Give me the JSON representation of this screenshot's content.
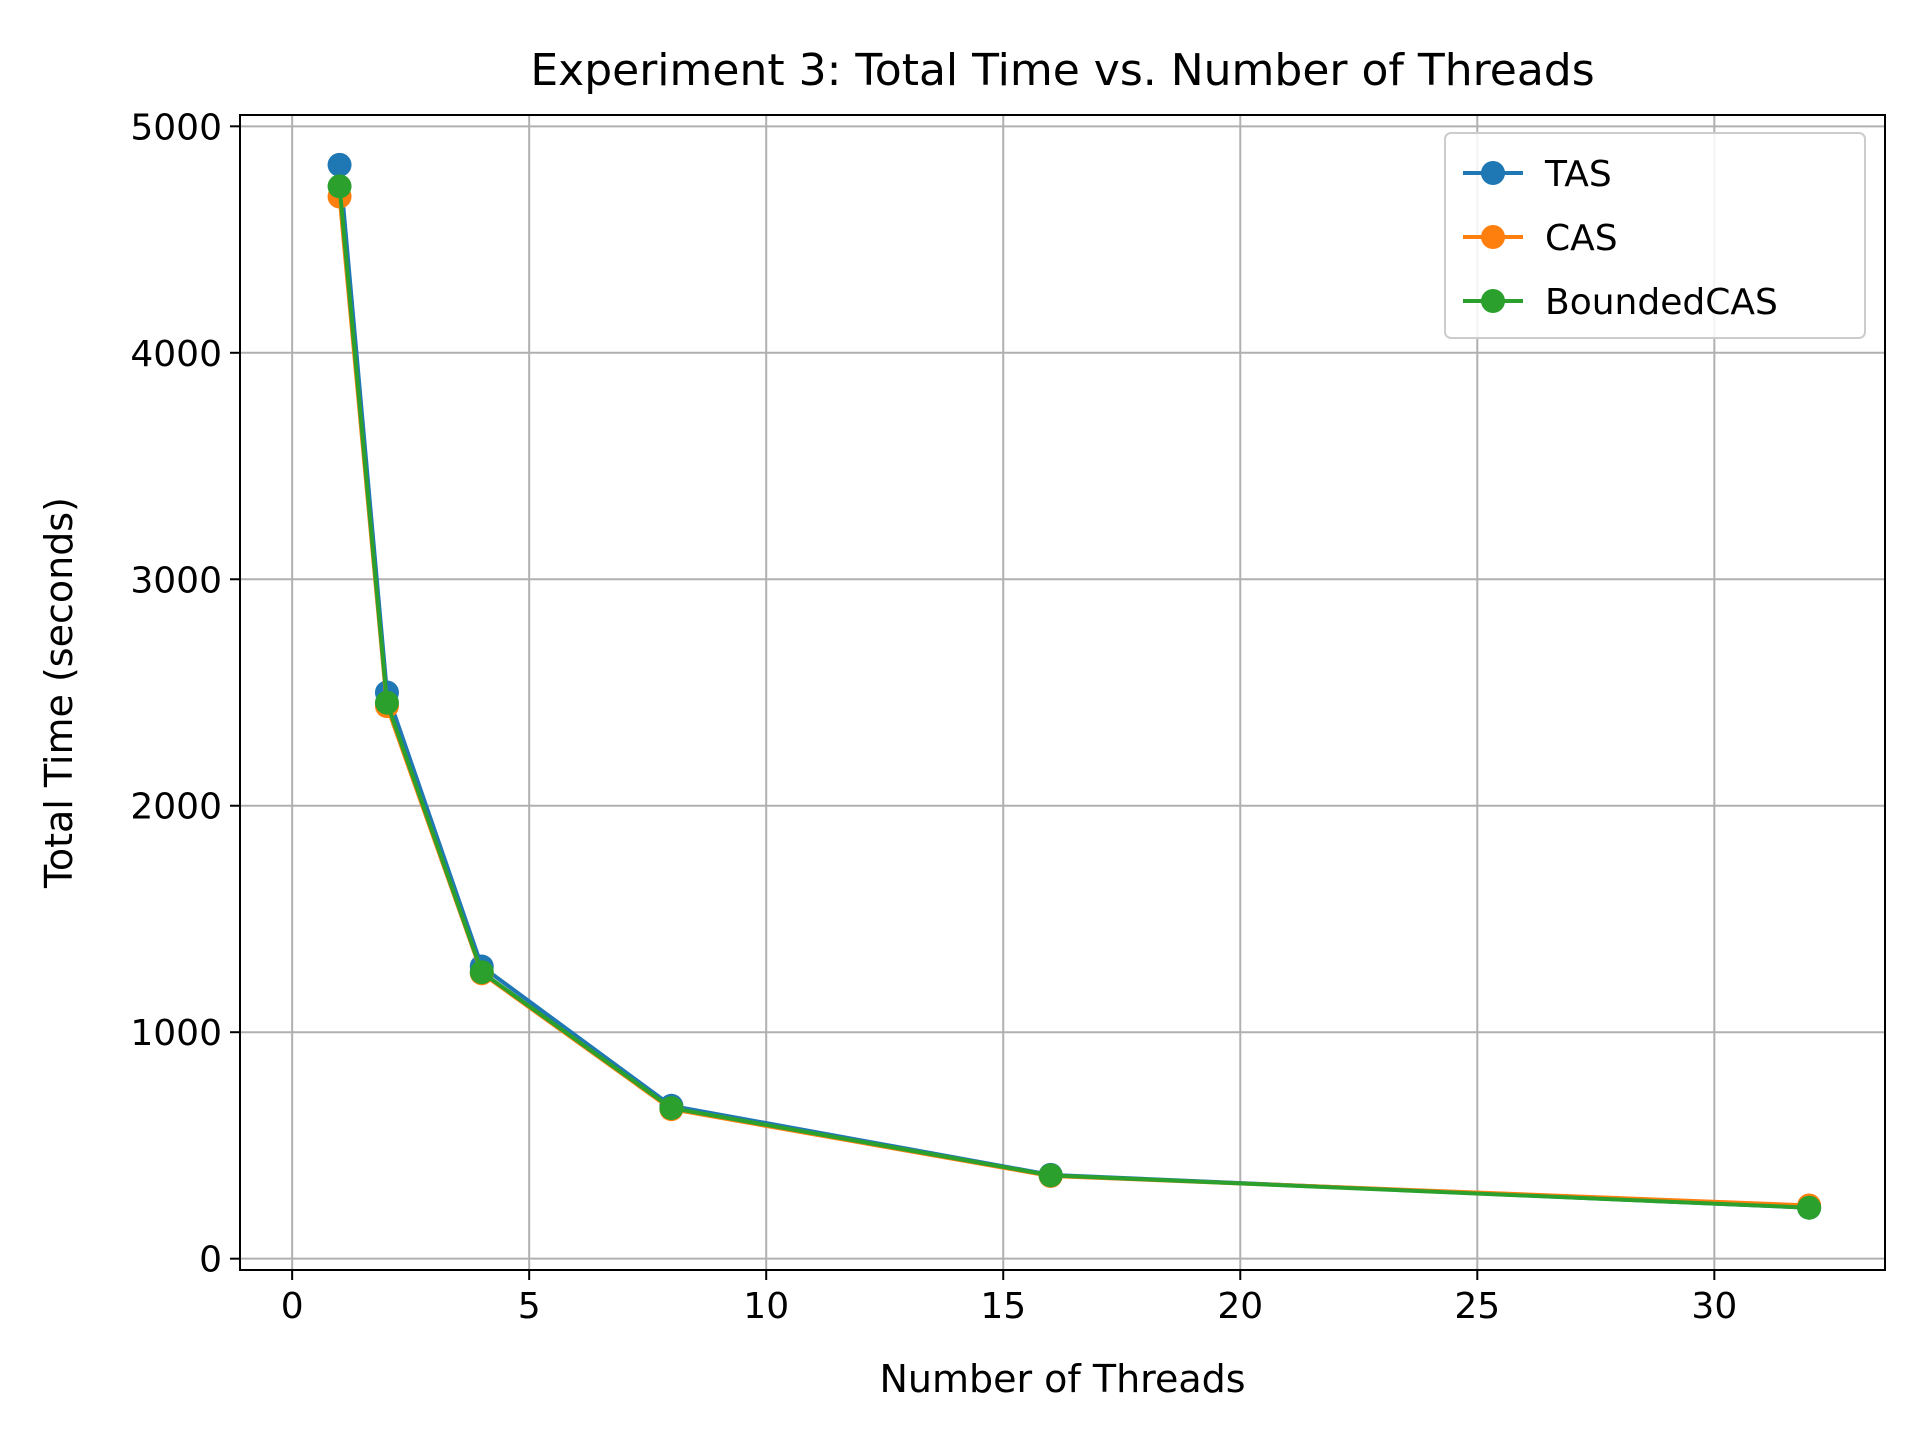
{
  "chart_data": {
    "type": "line",
    "title": "Experiment 3: Total Time vs. Number of Threads",
    "xlabel": "Number of Threads",
    "ylabel": "Total Time (seconds)",
    "xlim": [
      -1.1,
      33.6
    ],
    "ylim": [
      -50,
      5050
    ],
    "xticks": [
      0,
      5,
      10,
      15,
      20,
      25,
      30
    ],
    "yticks": [
      0,
      1000,
      2000,
      3000,
      4000,
      5000
    ],
    "grid": true,
    "legend_position": "top-right",
    "x": [
      1,
      2,
      4,
      8,
      16,
      32
    ],
    "series": [
      {
        "name": "TAS",
        "color": "#1f77b4",
        "values": [
          4830,
          2500,
          1290,
          675,
          370,
          225
        ]
      },
      {
        "name": "CAS",
        "color": "#ff7f0e",
        "values": [
          4690,
          2440,
          1260,
          660,
          365,
          235
        ]
      },
      {
        "name": "BoundedCAS",
        "color": "#2ca02c",
        "values": [
          4735,
          2455,
          1265,
          665,
          368,
          225
        ]
      }
    ]
  }
}
